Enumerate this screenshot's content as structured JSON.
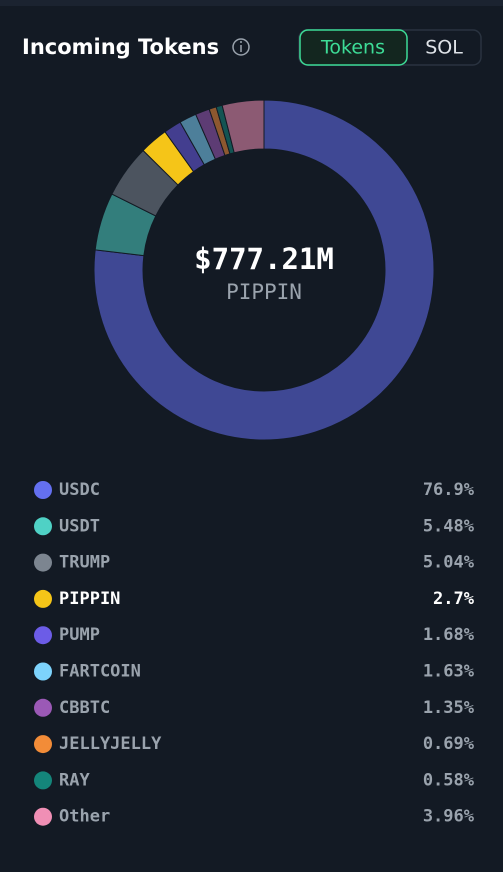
{
  "header": {
    "title": "Incoming Tokens",
    "toggle": [
      "Tokens",
      "SOL"
    ]
  },
  "chart_data": {
    "type": "pie",
    "center": {
      "value_text": "$777.21M",
      "label": "PIPPIN"
    },
    "categories": [
      "USDC",
      "USDT",
      "TRUMP",
      "PIPPIN",
      "PUMP",
      "FARTCOIN",
      "CBBTC",
      "JELLYJELLY",
      "RAY",
      "Other"
    ],
    "values": [
      76.9,
      5.48,
      5.04,
      2.7,
      1.68,
      1.63,
      1.35,
      0.69,
      0.58,
      3.96
    ],
    "value_labels": [
      "76.9%",
      "5.48%",
      "5.04%",
      "2.7%",
      "1.68%",
      "1.63%",
      "1.35%",
      "0.69%",
      "0.58%",
      "3.96%"
    ],
    "colors": [
      "#6470f0",
      "#4fd1c5",
      "#7c8590",
      "#f5c518",
      "#6c5ce7",
      "#7dd3fc",
      "#9b59b6",
      "#f28c38",
      "#14857a",
      "#f08fb5"
    ],
    "selected_index": 3
  }
}
